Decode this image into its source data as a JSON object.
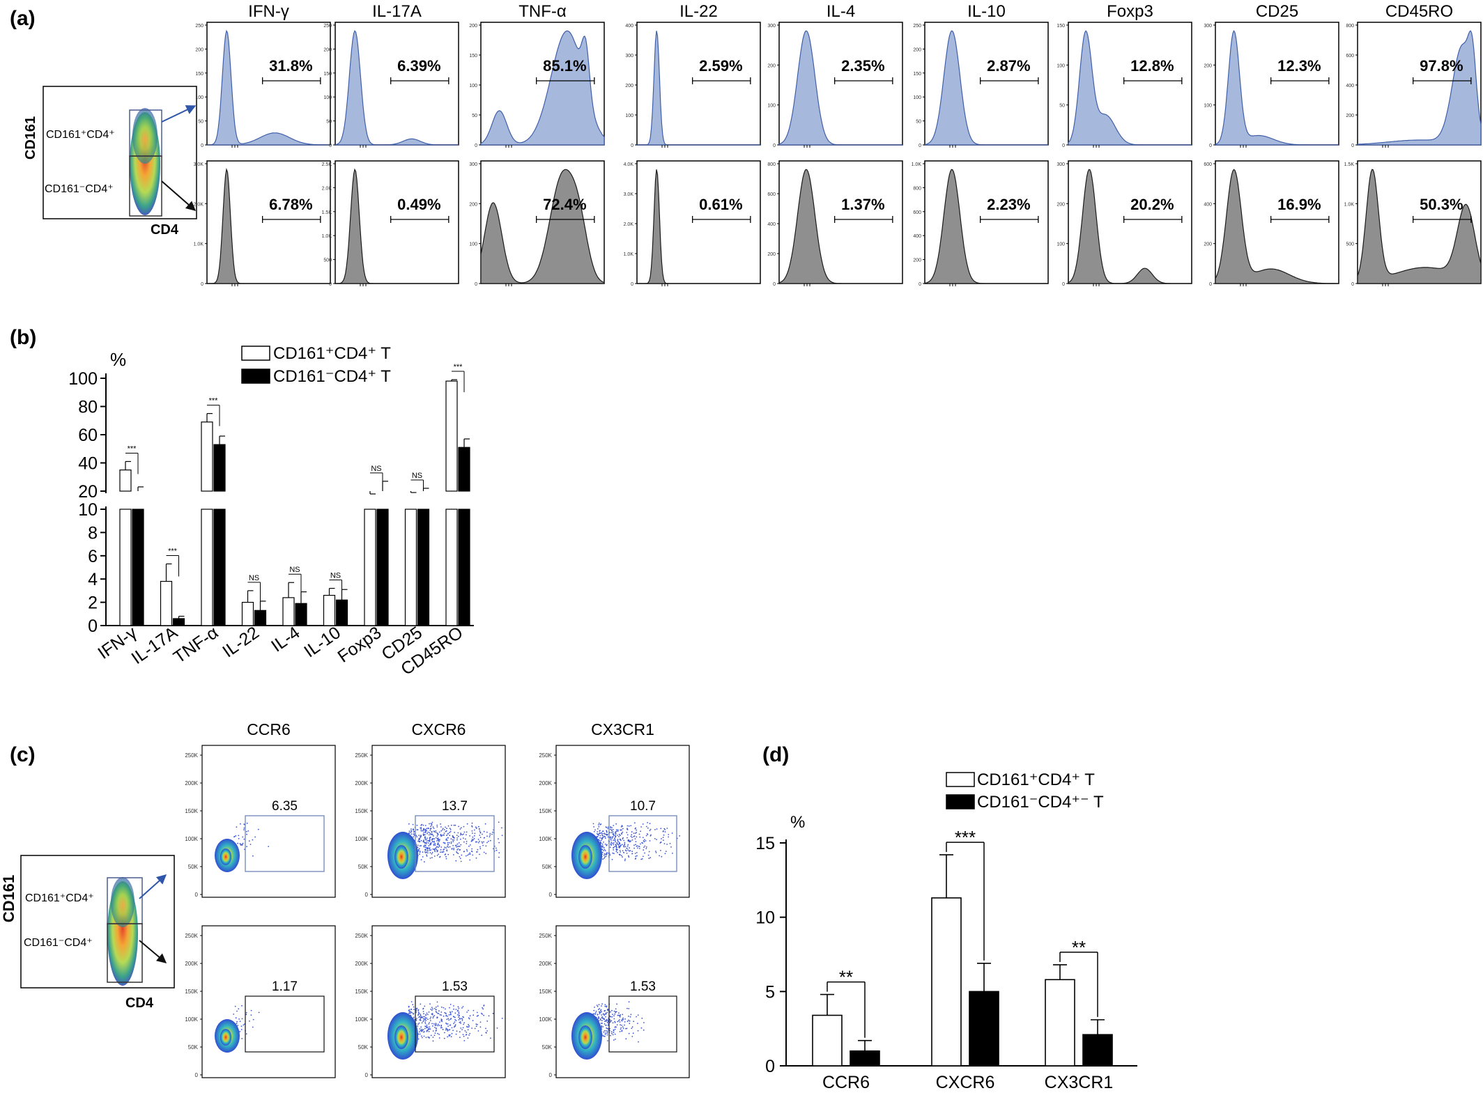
{
  "panels": {
    "a": {
      "label": "(a)",
      "gate_plot": {
        "y_label": "CD161",
        "x_label": "CD4",
        "gate_pos": "CD161⁺CD4⁺",
        "gate_neg": "CD161⁻CD4⁺"
      },
      "columns": [
        "IFN-γ",
        "IL-17A",
        "TNF-α",
        "IL-22",
        "IL-4",
        "IL-10",
        "Foxp3",
        "CD25",
        "CD45RO"
      ],
      "percent_pos": [
        "31.8%",
        "6.39%",
        "85.1%",
        "2.59%",
        "2.35%",
        "2.87%",
        "12.8%",
        "12.3%",
        "97.8%"
      ],
      "percent_neg": [
        "6.78%",
        "0.49%",
        "72.4%",
        "0.61%",
        "1.37%",
        "2.23%",
        "20.2%",
        "16.9%",
        "50.3%"
      ],
      "y_ticks_pos": [
        [
          "250",
          "200",
          "150",
          "100",
          "50",
          "0"
        ],
        [
          "250",
          "200",
          "150",
          "100",
          "50",
          "0"
        ],
        [
          "200",
          "150",
          "100",
          "50",
          "0"
        ],
        [
          "400",
          "300",
          "200",
          "100",
          "0"
        ],
        [
          "300",
          "200",
          "100",
          "0"
        ],
        [
          "250",
          "200",
          "150",
          "100",
          "50",
          "0"
        ],
        [
          "150",
          "100",
          "50",
          "0"
        ],
        [
          "300",
          "200",
          "100",
          "0"
        ],
        [
          "800",
          "600",
          "400",
          "200",
          "0"
        ]
      ],
      "y_ticks_neg": [
        [
          "3.0K",
          "2.0K",
          "1.0K",
          "0"
        ],
        [
          "2.5K",
          "2.0K",
          "1.5K",
          "1.0K",
          "500",
          "0"
        ],
        [
          "300",
          "200",
          "100",
          "0"
        ],
        [
          "4.0K",
          "3.0K",
          "2.0K",
          "1.0K",
          "0"
        ],
        [
          "800",
          "600",
          "400",
          "200",
          "0"
        ],
        [
          "1.0K",
          "800",
          "600",
          "400",
          "200",
          "0"
        ],
        [
          "300",
          "200",
          "100",
          "0"
        ],
        [
          "600",
          "400",
          "200",
          "0"
        ],
        [
          "1.5K",
          "1.0K",
          "500",
          "0"
        ]
      ],
      "colors": {
        "positive_fill": "#a7b8dd",
        "positive_line": "#3f5fa8",
        "negative_fill": "#8f8f8f",
        "negative_line": "#1a1a1a"
      }
    },
    "b": {
      "label": "(b)",
      "y_unit": "%",
      "legend": [
        "CD161⁺CD4⁺ T",
        "CD161⁻CD4⁺ T"
      ],
      "y_ticks_top": [
        "100",
        "80",
        "60",
        "40",
        "20"
      ],
      "y_ticks_bottom": [
        "10",
        "8",
        "6",
        "4",
        "2",
        "0"
      ],
      "significance": [
        "***",
        "***",
        "***",
        "NS",
        "NS",
        "NS",
        "NS",
        "NS",
        "***"
      ]
    },
    "c": {
      "label": "(c)",
      "gate_plot": {
        "y_label": "CD161",
        "x_label": "CD4",
        "gate_pos": "CD161⁺CD4⁺",
        "gate_neg": "CD161⁻CD4⁺"
      },
      "columns": [
        "CCR6",
        "CXCR6",
        "CX3CR1"
      ],
      "values_pos": [
        "6.35",
        "13.7",
        "10.7"
      ],
      "values_neg": [
        "1.17",
        "1.53",
        "1.53"
      ],
      "y_ticks": [
        "250K",
        "200K",
        "150K",
        "100K",
        "50K",
        "0"
      ]
    },
    "d": {
      "label": "(d)",
      "y_unit": "%",
      "legend": [
        "CD161⁺CD4⁺ T",
        "CD161⁻CD4⁺⁻ T"
      ],
      "y_ticks": [
        "15",
        "10",
        "5",
        "0"
      ],
      "significance": [
        "**",
        "***",
        "**"
      ]
    }
  },
  "chart_data": [
    {
      "type": "bar",
      "panel": "b",
      "categories": [
        "IFN-γ",
        "IL-17A",
        "TNF-α",
        "IL-22",
        "IL-4",
        "IL-10",
        "Foxp3",
        "CD25",
        "CD45RO"
      ],
      "series": [
        {
          "name": "CD161⁺CD4⁺ T",
          "values": [
            35,
            3.8,
            69,
            2.0,
            2.4,
            2.6,
            12,
            13,
            98
          ],
          "errors": [
            6,
            1.5,
            6,
            1.0,
            1.3,
            0.6,
            6,
            6,
            1
          ]
        },
        {
          "name": "CD161⁻CD4⁺ T",
          "values": [
            15,
            0.6,
            53,
            1.3,
            1.9,
            2.2,
            17,
            15,
            51
          ],
          "errors": [
            8,
            0.2,
            6,
            0.8,
            1.0,
            0.9,
            10,
            7,
            6
          ]
        }
      ],
      "ylabel": "%",
      "y_axis_break": [
        10,
        20
      ],
      "ylim": [
        0,
        100
      ],
      "legend_position": "top"
    },
    {
      "type": "bar",
      "panel": "d",
      "categories": [
        "CCR6",
        "CXCR6",
        "CX3CR1"
      ],
      "series": [
        {
          "name": "CD161⁺CD4⁺ T",
          "values": [
            3.4,
            11.3,
            5.8
          ],
          "errors": [
            1.4,
            2.9,
            1.0
          ]
        },
        {
          "name": "CD161⁻CD4⁺⁻ T",
          "values": [
            1.0,
            5.0,
            2.1
          ],
          "errors": [
            0.7,
            1.9,
            1.0
          ]
        }
      ],
      "ylabel": "%",
      "ylim": [
        0,
        15
      ],
      "legend_position": "top"
    }
  ]
}
